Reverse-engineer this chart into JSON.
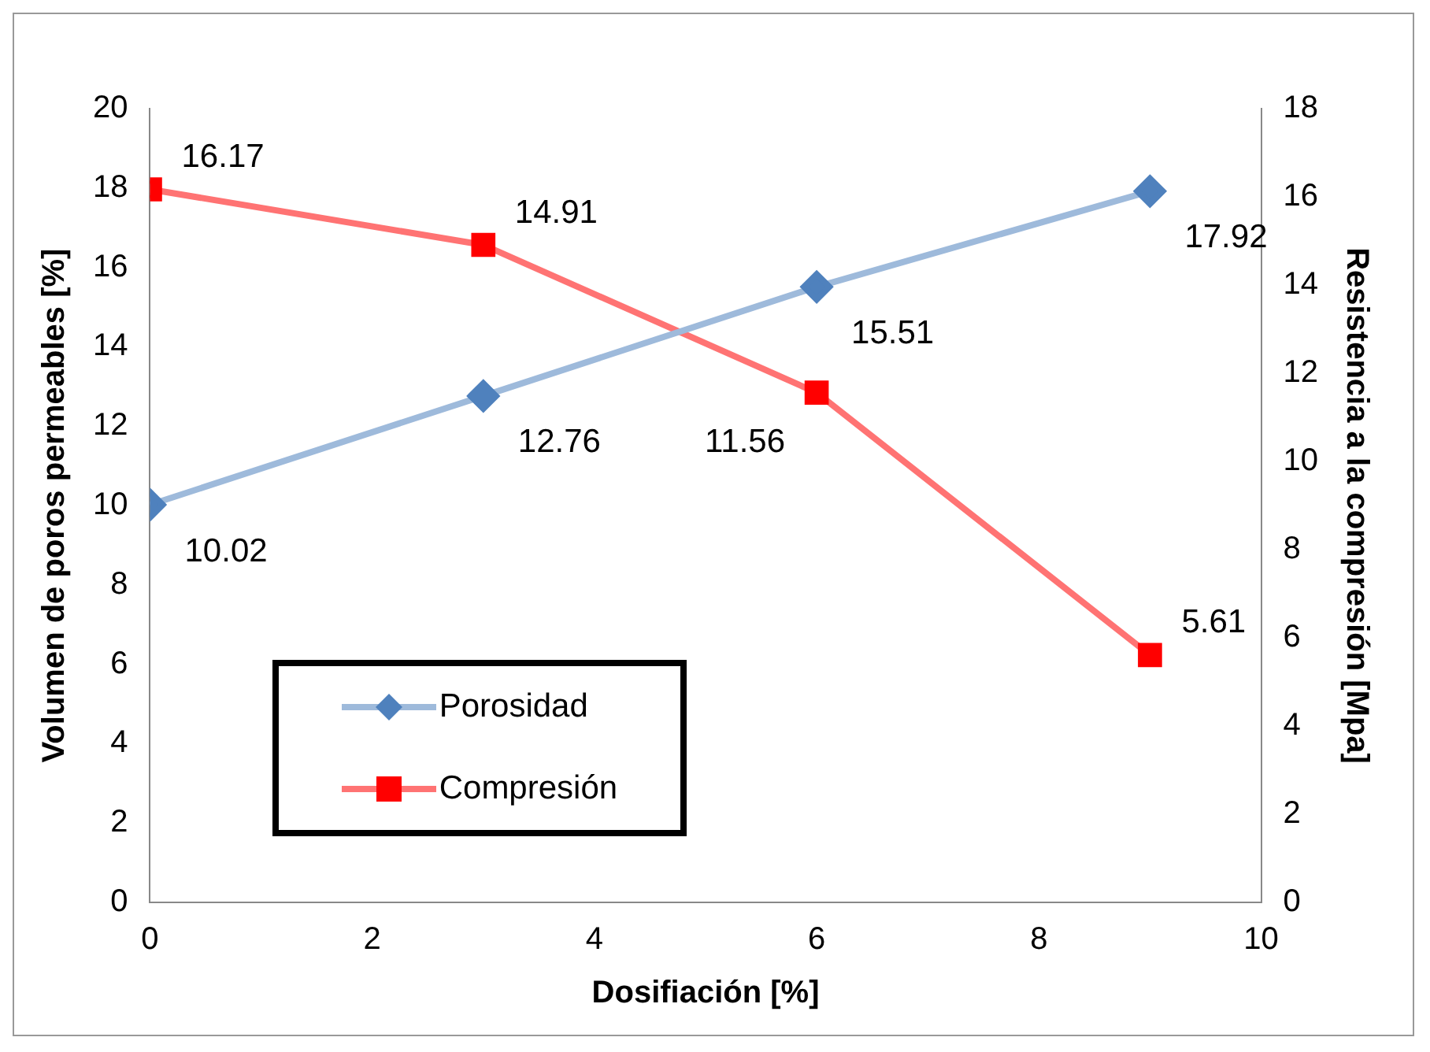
{
  "chart_data": {
    "type": "line",
    "x": [
      0,
      3,
      6,
      9
    ],
    "xlabel": "Dosifiación [%]",
    "ylabel": "Volumen de poros permeables [%]",
    "y2label": "Resistencia a la compresión [Mpa]",
    "series": [
      {
        "name": "Porosidad",
        "color": "#4f81bd",
        "values": [
          10.02,
          12.76,
          15.51,
          17.92
        ],
        "marker": "diamond"
      },
      {
        "name": "Compresión",
        "color": "#ff0000",
        "values": [
          16.17,
          14.91,
          11.56,
          5.61
        ],
        "marker": "square",
        "axis": "y2"
      }
    ],
    "xlim": [
      0,
      10
    ],
    "xticks": [
      0,
      2,
      4,
      6,
      8,
      10
    ],
    "ylim": [
      0,
      20
    ],
    "yticks": [
      0,
      2,
      4,
      6,
      8,
      10,
      12,
      14,
      16,
      18,
      20
    ],
    "y2lim": [
      0,
      18
    ],
    "y2ticks": [
      0,
      2,
      4,
      6,
      8,
      10,
      12,
      14,
      16,
      18
    ],
    "data_labels": true,
    "grid": false,
    "legend": "bottom left",
    "line_style": "solid"
  }
}
